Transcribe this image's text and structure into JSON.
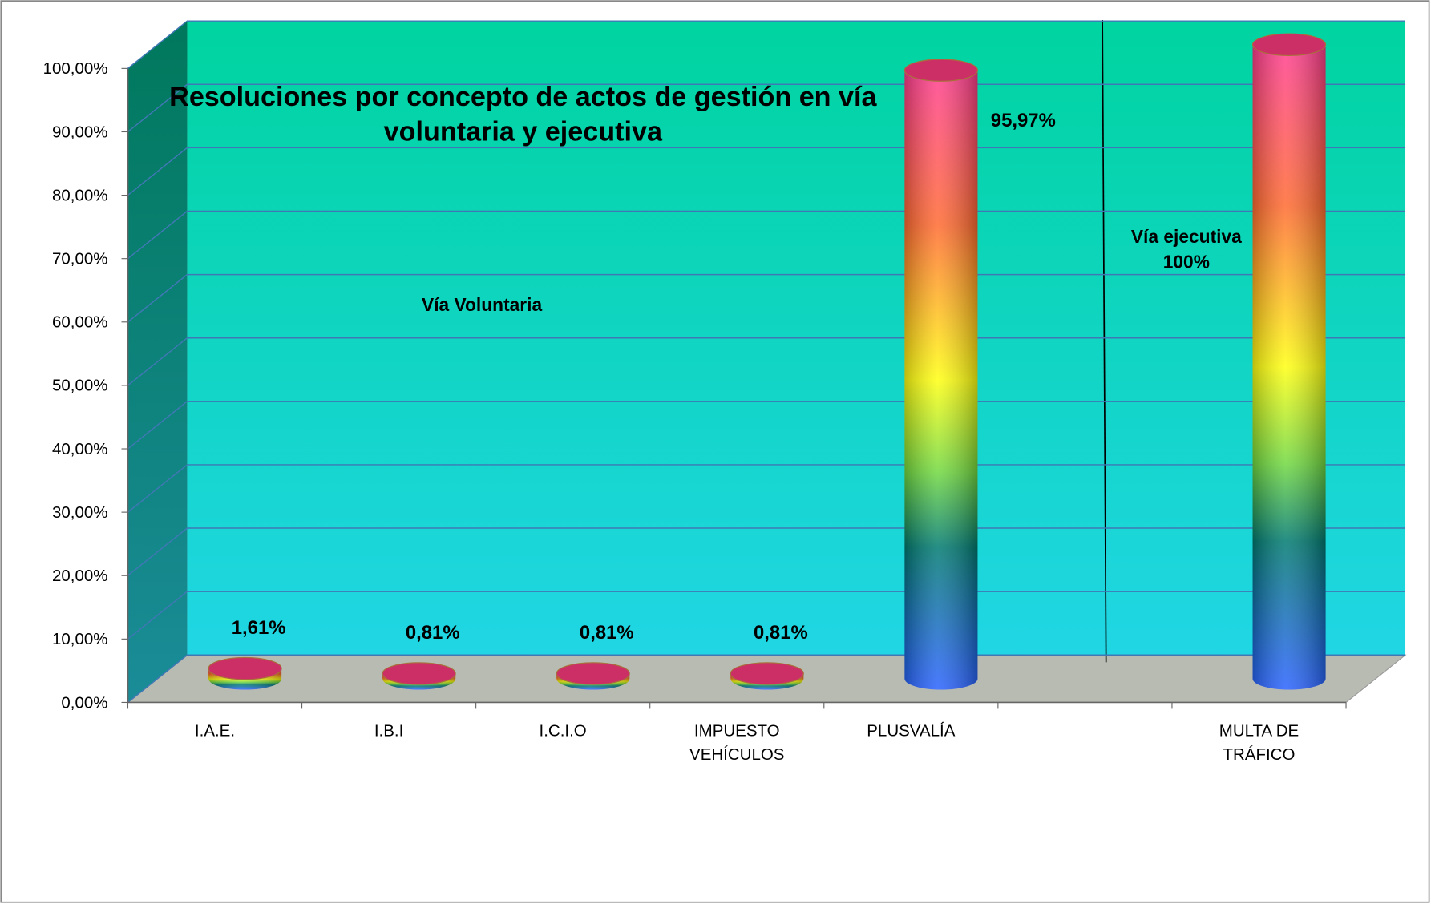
{
  "chart_data": {
    "type": "bar3d",
    "title": "Resoluciones por concepto de actos de gestión en vía voluntaria y ejecutiva",
    "categories": [
      "I.A.E.",
      "I.B.I",
      "I.C.I.O",
      "IMPUESTO VEHÍCULOS",
      "PLUSVALÍA",
      null,
      "MULTA DE TRÁFICO"
    ],
    "values": [
      1.61,
      0.81,
      0.81,
      0.81,
      95.97,
      null,
      100
    ],
    "value_labels": [
      "1,61%",
      "0,81%",
      "0,81%",
      "0,81%",
      "95,97%",
      null,
      null
    ],
    "annotations": [
      "Vía Voluntaria",
      "Vía ejecutiva 100%"
    ],
    "ylim": [
      0,
      100
    ],
    "yticks": [
      {
        "value": 0,
        "label": "0,00%"
      },
      {
        "value": 10,
        "label": "10,00%"
      },
      {
        "value": 20,
        "label": "20,00%"
      },
      {
        "value": 30,
        "label": "30,00%"
      },
      {
        "value": 40,
        "label": "40,00%"
      },
      {
        "value": 50,
        "label": "50,00%"
      },
      {
        "value": 60,
        "label": "60,00%"
      },
      {
        "value": 70,
        "label": "70,00%"
      },
      {
        "value": 80,
        "label": "80,00%"
      },
      {
        "value": 90,
        "label": "90,00%"
      },
      {
        "value": 100,
        "label": "100,00%"
      }
    ],
    "grid": true
  }
}
